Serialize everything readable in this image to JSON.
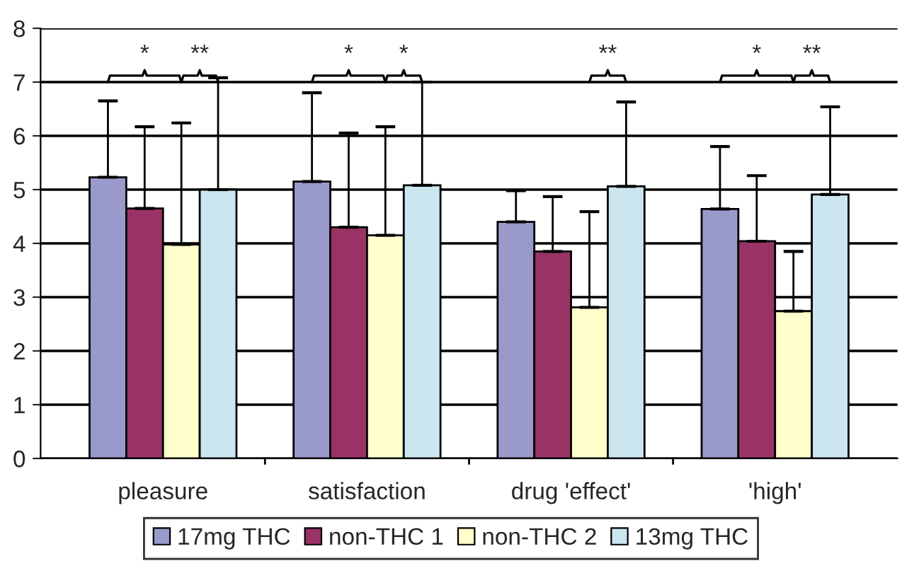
{
  "chart_data": {
    "type": "bar",
    "categories": [
      "pleasure",
      "satisfaction",
      "drug 'effect'",
      "'high'"
    ],
    "series": [
      {
        "name": "17mg THC",
        "color": "#9999cc",
        "values": [
          5.23,
          5.15,
          4.4,
          4.64
        ],
        "errors": [
          [
            5.23,
            6.65
          ],
          [
            5.15,
            6.8
          ],
          [
            4.4,
            4.98
          ],
          [
            4.64,
            5.8
          ]
        ]
      },
      {
        "name": "non-THC 1",
        "color": "#993366",
        "values": [
          4.65,
          4.3,
          3.85,
          4.04
        ],
        "errors": [
          [
            4.65,
            6.17
          ],
          [
            4.3,
            6.05
          ],
          [
            3.85,
            4.87
          ],
          [
            4.04,
            5.26
          ]
        ]
      },
      {
        "name": "non-THC 2",
        "color": "#ffffcc",
        "values": [
          3.98,
          4.15,
          2.81,
          2.74
        ],
        "errors": [
          [
            3.98,
            6.24
          ],
          [
            4.15,
            6.17
          ],
          [
            2.81,
            4.59
          ],
          [
            2.74,
            3.85
          ]
        ]
      },
      {
        "name": "13mg THC",
        "color": "#cce6f0",
        "values": [
          5.0,
          5.08,
          5.06,
          4.91
        ],
        "errors": [
          [
            5.0,
            7.08
          ],
          [
            5.08,
            7.0
          ],
          [
            5.06,
            6.63
          ],
          [
            4.91,
            6.54
          ]
        ]
      }
    ],
    "ylim": [
      0,
      8
    ],
    "yticks": [
      0,
      1,
      2,
      3,
      4,
      5,
      6,
      7,
      8
    ],
    "grid": "y",
    "legend": "bottom",
    "annotations": [
      "*",
      "**",
      "*",
      "*",
      "**",
      "*",
      "**"
    ]
  }
}
